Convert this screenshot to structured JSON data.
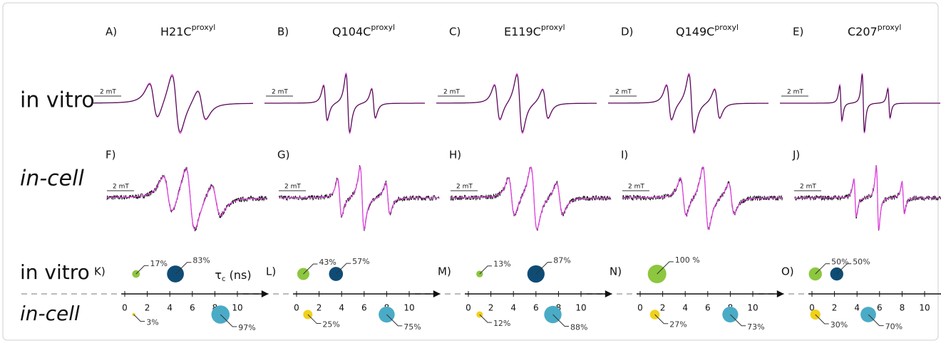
{
  "row_labels": {
    "spectra_vitro": "in vitro",
    "spectra_cell": "in-cell",
    "bubbles_vitro": "in vitro",
    "bubbles_cell": "in-cell"
  },
  "scale_bar": "2 mT",
  "axis_label": {
    "symbol": "τ",
    "subscript": "c",
    "unit": " (ns)"
  },
  "xlim": [
    0,
    11
  ],
  "xticks": [
    0,
    2,
    4,
    6,
    8,
    10
  ],
  "colors": {
    "vitro_small": "#8dc63f",
    "vitro_large": "#0f4c75",
    "cell_small": "#f0d11c",
    "cell_large": "#4aabc6"
  },
  "panels": [
    {
      "spectra_letters": [
        "A)",
        "F)"
      ],
      "bubble_letter": "K)",
      "title": {
        "name": "H21C",
        "superscript": "proxyl"
      },
      "in_vitro": {
        "x": [
          1,
          4.5
        ],
        "values": [
          17,
          83
        ],
        "value_labels": [
          "17%",
          "83%"
        ]
      },
      "in_cell": {
        "x": [
          0.8,
          8.5
        ],
        "values": [
          3,
          97
        ],
        "value_labels": [
          "3%",
          "97%"
        ]
      }
    },
    {
      "spectra_letters": [
        "B)",
        "G)"
      ],
      "bubble_letter": "L)",
      "title": {
        "name": "Q104C",
        "superscript": "proxyl"
      },
      "in_vitro": {
        "x": [
          0.6,
          3.5
        ],
        "values": [
          43,
          57
        ],
        "value_labels": [
          "43%",
          "57%"
        ]
      },
      "in_cell": {
        "x": [
          1,
          8
        ],
        "values": [
          25,
          75
        ],
        "value_labels": [
          "25%",
          "75%"
        ]
      }
    },
    {
      "spectra_letters": [
        "C)",
        "H)"
      ],
      "bubble_letter": "M)",
      "title": {
        "name": "E119C",
        "superscript": "proxyl"
      },
      "in_vitro": {
        "x": [
          1,
          6
        ],
        "values": [
          13,
          87
        ],
        "value_labels": [
          "13%",
          "87%"
        ]
      },
      "in_cell": {
        "x": [
          1,
          7.5
        ],
        "values": [
          12,
          88
        ],
        "value_labels": [
          "12%",
          "88%"
        ]
      }
    },
    {
      "spectra_letters": [
        "D)",
        "I)"
      ],
      "bubble_letter": "N)",
      "title": {
        "name": "Q149C",
        "superscript": "proxyl"
      },
      "in_vitro": {
        "x": [
          1.5
        ],
        "values": [
          100
        ],
        "value_labels": [
          "100 %"
        ]
      },
      "in_cell": {
        "x": [
          1.3,
          8
        ],
        "values": [
          27,
          73
        ],
        "value_labels": [
          "27%",
          "73%"
        ]
      }
    },
    {
      "spectra_letters": [
        "E)",
        "J)"
      ],
      "bubble_letter": "O)",
      "title": {
        "name": "C207",
        "superscript": "proxyl"
      },
      "in_vitro": {
        "x": [
          0.3,
          2.2
        ],
        "values": [
          50,
          50
        ],
        "value_labels": [
          "50%",
          "50%"
        ]
      },
      "in_cell": {
        "x": [
          0.3,
          5
        ],
        "values": [
          30,
          70
        ],
        "value_labels": [
          "30%",
          "70%"
        ]
      }
    }
  ]
}
